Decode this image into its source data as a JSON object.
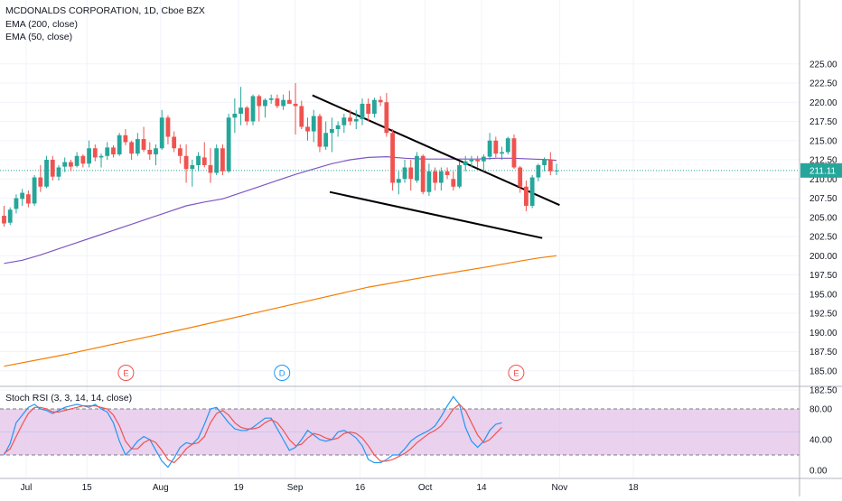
{
  "header": {
    "title": "MCDONALDS CORPORATION, 1D, Cboe BZX",
    "ema200": "EMA (200, close)",
    "ema50": "EMA (50, close)"
  },
  "last_price": "211.11",
  "rsi_panel": {
    "title": "Stoch RSI (3, 3, 14, 14, close)"
  },
  "colors": {
    "up": "#26a69a",
    "down": "#ef5350",
    "ema200": "#f57c00",
    "ema50": "#7e57c2",
    "trendline": "#000000",
    "price_line": "#26a69a",
    "k_line": "#2196f3",
    "d_line": "#ef5350",
    "rsi_band": "#e1bee7"
  },
  "chart_data": [
    {
      "type": "candlestick",
      "title": "MCDONALDS CORPORATION, 1D, Cboe BZX",
      "x_tick_labels": [
        "Jul",
        "15",
        "Aug",
        "19",
        "Sep",
        "16",
        "Oct",
        "14",
        "Nov",
        "18"
      ],
      "y_ticks": [
        "182.50",
        "185.00",
        "187.50",
        "190.00",
        "192.50",
        "195.00",
        "197.50",
        "200.00",
        "202.50",
        "205.00",
        "207.50",
        "210.00",
        "212.50",
        "215.00",
        "217.50",
        "220.00",
        "222.50",
        "225.00"
      ],
      "ylim": [
        182.5,
        225
      ],
      "last_price": 211.11,
      "candles": [
        [
          205.2,
          206.5,
          203.8,
          204.2
        ],
        [
          204.3,
          206.3,
          204.0,
          206.0
        ],
        [
          206.1,
          208.0,
          205.5,
          207.5
        ],
        [
          207.4,
          208.7,
          206.5,
          208.2
        ],
        [
          208.0,
          208.5,
          206.3,
          206.8
        ],
        [
          206.8,
          210.5,
          206.5,
          210.2
        ],
        [
          210.2,
          211.8,
          208.3,
          209.0
        ],
        [
          209.0,
          213.0,
          208.8,
          212.5
        ],
        [
          212.5,
          213.0,
          209.8,
          210.3
        ],
        [
          210.3,
          211.8,
          209.8,
          211.5
        ],
        [
          211.6,
          212.8,
          210.9,
          212.2
        ],
        [
          212.2,
          212.5,
          211.0,
          211.6
        ],
        [
          211.7,
          213.5,
          211.5,
          213.0
        ],
        [
          213.0,
          213.2,
          211.5,
          212.0
        ],
        [
          212.0,
          215.0,
          211.5,
          214.0
        ],
        [
          214.0,
          214.5,
          212.3,
          212.8
        ],
        [
          212.8,
          213.3,
          211.5,
          213.0
        ],
        [
          213.0,
          214.8,
          212.5,
          214.1
        ],
        [
          214.1,
          214.4,
          212.8,
          213.2
        ],
        [
          213.2,
          216.0,
          213.0,
          215.7
        ],
        [
          215.7,
          216.5,
          214.4,
          214.8
        ],
        [
          214.8,
          215.0,
          212.5,
          213.3
        ],
        [
          213.3,
          216.0,
          213.0,
          215.2
        ],
        [
          215.2,
          216.8,
          213.5,
          213.8
        ],
        [
          213.8,
          214.8,
          212.5,
          213.2
        ],
        [
          213.2,
          214.5,
          211.8,
          214.0
        ],
        [
          214.0,
          219.0,
          213.8,
          218.0
        ],
        [
          218.0,
          218.3,
          214.5,
          215.5
        ],
        [
          215.5,
          216.2,
          213.5,
          214.0
        ],
        [
          214.0,
          214.5,
          212.0,
          213.0
        ],
        [
          213.0,
          214.5,
          209.5,
          211.3
        ],
        [
          211.3,
          212.5,
          209.0,
          211.8
        ],
        [
          211.8,
          213.5,
          211.0,
          213.0
        ],
        [
          212.8,
          214.8,
          211.5,
          211.8
        ],
        [
          211.8,
          214.0,
          209.5,
          210.8
        ],
        [
          210.8,
          214.5,
          210.5,
          214.0
        ],
        [
          214.0,
          214.5,
          210.5,
          211.0
        ],
        [
          211.0,
          218.5,
          210.8,
          218.0
        ],
        [
          218.0,
          220.5,
          216.0,
          218.5
        ],
        [
          218.5,
          222.0,
          217.0,
          219.3
        ],
        [
          219.3,
          219.5,
          217.0,
          217.5
        ],
        [
          217.5,
          221.0,
          217.0,
          220.8
        ],
        [
          220.8,
          221.0,
          217.5,
          219.5
        ],
        [
          219.5,
          220.5,
          218.0,
          220.3
        ],
        [
          220.3,
          221.0,
          219.8,
          220.5
        ],
        [
          220.5,
          221.0,
          219.2,
          219.5
        ],
        [
          219.5,
          221.0,
          219.0,
          220.3
        ],
        [
          220.3,
          221.5,
          219.8,
          219.8
        ],
        [
          219.8,
          222.5,
          215.8,
          219.5
        ],
        [
          219.5,
          220.2,
          216.5,
          216.8
        ],
        [
          216.8,
          218.0,
          215.0,
          216.2
        ],
        [
          216.2,
          219.0,
          214.8,
          218.2
        ],
        [
          218.2,
          218.5,
          213.5,
          214.2
        ],
        [
          214.2,
          217.5,
          213.8,
          216.0
        ],
        [
          216.0,
          218.0,
          213.5,
          216.5
        ],
        [
          216.5,
          217.5,
          215.5,
          217.0
        ],
        [
          217.0,
          218.5,
          216.0,
          218.0
        ],
        [
          218.0,
          219.0,
          217.0,
          217.5
        ],
        [
          217.5,
          219.0,
          216.5,
          217.8
        ],
        [
          217.8,
          220.5,
          217.0,
          219.8
        ],
        [
          219.8,
          220.5,
          217.5,
          218.5
        ],
        [
          218.5,
          220.6,
          218.0,
          220.3
        ],
        [
          220.3,
          220.8,
          219.5,
          220.0
        ],
        [
          220.0,
          221.2,
          215.5,
          216.0
        ],
        [
          216.0,
          216.5,
          208.5,
          209.5
        ],
        [
          209.5,
          211.0,
          208.0,
          210.0
        ],
        [
          210.0,
          212.5,
          209.5,
          211.5
        ],
        [
          211.5,
          212.5,
          208.5,
          210.0
        ],
        [
          209.8,
          213.5,
          209.5,
          213.0
        ],
        [
          213.0,
          213.2,
          208.0,
          208.3
        ],
        [
          208.3,
          212.0,
          207.8,
          211.0
        ],
        [
          211.0,
          211.5,
          208.5,
          209.5
        ],
        [
          209.5,
          211.5,
          208.5,
          211.0
        ],
        [
          211.0,
          211.5,
          210.0,
          210.5
        ],
        [
          210.0,
          211.0,
          208.5,
          209.0
        ],
        [
          209.0,
          212.3,
          208.8,
          211.8
        ],
        [
          211.8,
          213.0,
          211.0,
          212.3
        ],
        [
          212.3,
          213.0,
          211.5,
          212.5
        ],
        [
          212.5,
          213.0,
          211.5,
          212.3
        ],
        [
          212.3,
          213.2,
          211.0,
          212.9
        ],
        [
          212.9,
          216.0,
          212.5,
          215.0
        ],
        [
          215.0,
          215.5,
          212.8,
          213.3
        ],
        [
          213.3,
          214.2,
          212.5,
          213.5
        ],
        [
          213.5,
          215.5,
          213.2,
          215.3
        ],
        [
          215.3,
          215.8,
          211.3,
          211.5
        ],
        [
          211.5,
          211.7,
          208.2,
          209.0
        ],
        [
          209.0,
          209.8,
          205.8,
          206.5
        ],
        [
          206.5,
          210.5,
          206.2,
          210.2
        ],
        [
          210.2,
          212.0,
          209.7,
          211.8
        ],
        [
          211.8,
          212.8,
          211.0,
          212.5
        ],
        [
          212.5,
          213.5,
          210.5,
          211.0
        ],
        [
          211.0,
          212.0,
          210.5,
          211.11
        ]
      ],
      "series": [
        {
          "name": "EMA (50, close)",
          "x": [
            0,
            3,
            6,
            9,
            12,
            15,
            18,
            21,
            24,
            27,
            30,
            33,
            36,
            39,
            42,
            45,
            48,
            51,
            54,
            57,
            60,
            63,
            66,
            69,
            72,
            75,
            78,
            81,
            84,
            87,
            90,
            91
          ],
          "values": [
            199.0,
            199.4,
            200.1,
            200.9,
            201.7,
            202.5,
            203.3,
            204.1,
            204.9,
            205.7,
            206.5,
            207.0,
            207.4,
            208.2,
            209.0,
            209.8,
            210.6,
            211.3,
            212.0,
            212.5,
            212.8,
            212.9,
            212.7,
            212.6,
            212.6,
            212.6,
            212.6,
            212.7,
            212.7,
            212.6,
            212.5,
            212.4
          ]
        },
        {
          "name": "EMA (200, close)",
          "x": [
            0,
            10,
            20,
            30,
            40,
            50,
            60,
            70,
            80,
            85,
            88,
            91
          ],
          "values": [
            185.6,
            187.1,
            188.8,
            190.5,
            192.3,
            194.1,
            195.9,
            197.3,
            198.6,
            199.3,
            199.7,
            200.0
          ]
        }
      ],
      "trendlines": [
        {
          "from": [
            "2019-09-05",
            220.9
          ],
          "to": [
            "2019-11-01",
            206.6
          ]
        },
        {
          "from": [
            "2019-09-09",
            208.3
          ],
          "to": [
            "2019-10-28",
            202.3
          ]
        }
      ],
      "markers": [
        {
          "label": "E",
          "at": "Jul 24",
          "color": "#ef5350"
        },
        {
          "label": "D",
          "at": "Aug 29",
          "color": "#2196f3"
        },
        {
          "label": "E",
          "at": "Oct 22",
          "color": "#ef5350"
        }
      ]
    },
    {
      "type": "line",
      "title": "Stoch RSI (3, 3, 14, 14, close)",
      "y_ticks": [
        "0.00",
        "40.00",
        "80.00"
      ],
      "ylim": [
        -8,
        97
      ],
      "bands": [
        20,
        80
      ],
      "series": [
        {
          "name": "K",
          "values": [
            20,
            35,
            62,
            72,
            82,
            86,
            80,
            78,
            74,
            78,
            82,
            84,
            86,
            84,
            82,
            86,
            80,
            76,
            62,
            38,
            20,
            28,
            38,
            44,
            40,
            26,
            12,
            4,
            16,
            30,
            36,
            34,
            42,
            60,
            80,
            82,
            72,
            62,
            54,
            52,
            52,
            56,
            62,
            68,
            68,
            54,
            40,
            26,
            30,
            40,
            52,
            46,
            40,
            38,
            40,
            50,
            52,
            48,
            42,
            32,
            14,
            10,
            10,
            14,
            20,
            20,
            28,
            38,
            44,
            48,
            52,
            58,
            70,
            84,
            96,
            86,
            56,
            38,
            30,
            38,
            52,
            60,
            62
          ]
        },
        {
          "name": "D",
          "values": [
            22,
            28,
            44,
            60,
            74,
            82,
            82,
            80,
            76,
            76,
            78,
            80,
            82,
            84,
            84,
            84,
            82,
            80,
            72,
            58,
            38,
            28,
            28,
            36,
            40,
            36,
            26,
            14,
            10,
            18,
            28,
            34,
            36,
            44,
            62,
            74,
            78,
            72,
            62,
            56,
            54,
            54,
            56,
            62,
            66,
            62,
            52,
            40,
            32,
            34,
            42,
            48,
            46,
            42,
            40,
            42,
            48,
            50,
            48,
            42,
            32,
            20,
            12,
            12,
            14,
            18,
            22,
            28,
            36,
            42,
            48,
            52,
            58,
            68,
            80,
            86,
            78,
            62,
            46,
            36,
            40,
            48,
            56
          ]
        }
      ]
    }
  ]
}
